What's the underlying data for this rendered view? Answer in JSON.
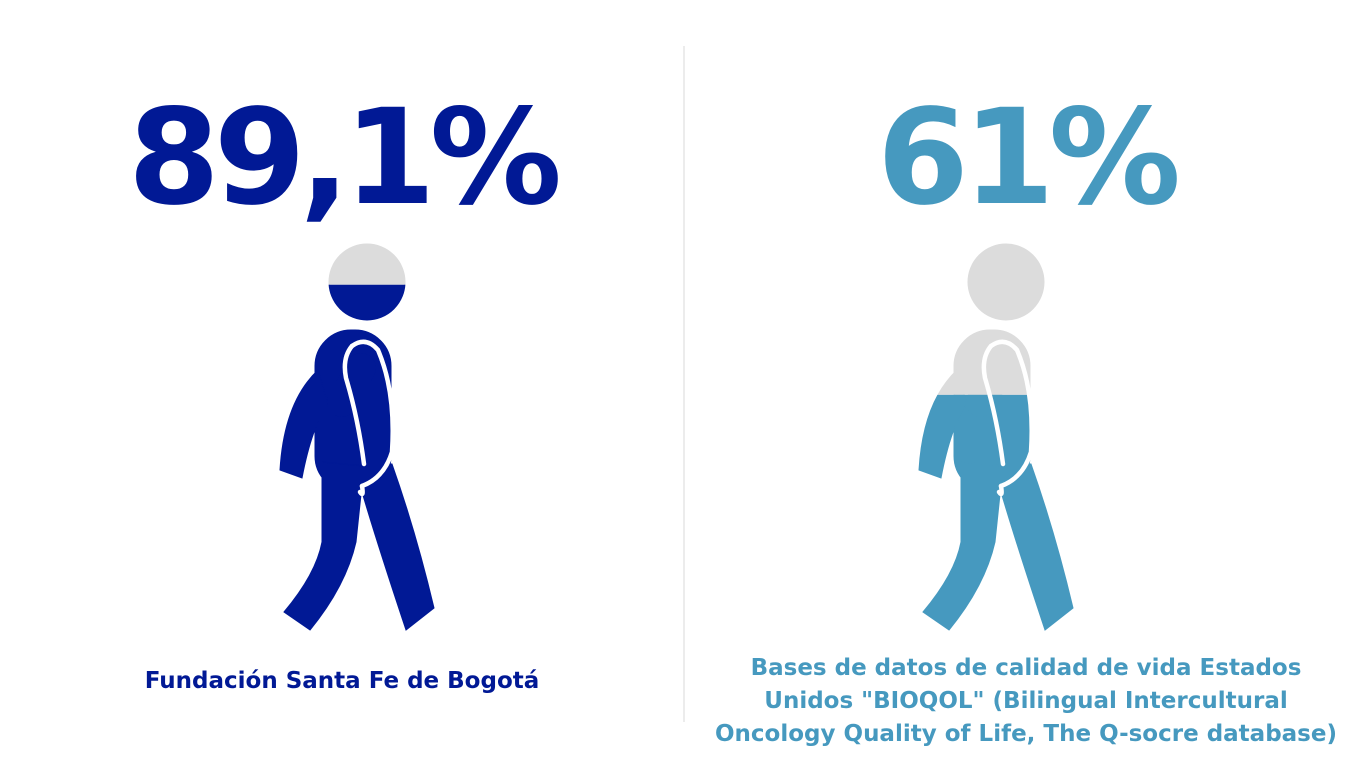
{
  "left": {
    "value": "89,1%",
    "caption": "Fundación Santa Fe de Bogotá",
    "fill_fraction": 0.891,
    "color": "#011995"
  },
  "right": {
    "value": "61%",
    "caption": "Bases de datos de calidad de vida Estados Unidos \"BIOQOL\" (Bilingual Intercultural Oncology Quality of Life, The Q-socre database)",
    "fill_fraction": 0.61,
    "color": "#4699bf"
  },
  "colors": {
    "empty": "#dcdcdc",
    "outline": "#ffffff"
  },
  "icons": {
    "figure": "walking-person-icon"
  }
}
